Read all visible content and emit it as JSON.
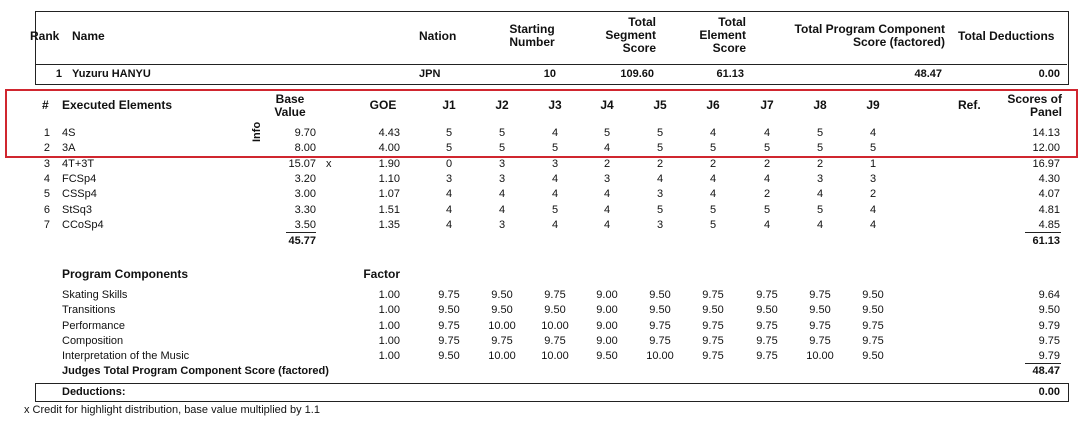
{
  "header": {
    "rank": "Rank",
    "name": "Name",
    "nation": "Nation",
    "starting_number": "Starting Number",
    "total_segment_score": "Total Segment Score",
    "total_element_score": "Total Element Score",
    "total_program_component": "Total Program Component Score (factored)",
    "total_deductions": "Total Deductions"
  },
  "skater": {
    "rank": "1",
    "name": "Yuzuru HANYU",
    "nation": "JPN",
    "starting_number": "10",
    "total_segment_score": "109.60",
    "total_element_score": "61.13",
    "total_program_component": "48.47",
    "total_deductions": "0.00"
  },
  "elements_header": {
    "num": "#",
    "executed_elements": "Executed Elements",
    "info": "Info",
    "base_value": "Base Value",
    "goe": "GOE",
    "judges": [
      "J1",
      "J2",
      "J3",
      "J4",
      "J5",
      "J6",
      "J7",
      "J8",
      "J9"
    ],
    "ref": "Ref.",
    "scores_of_panel": "Scores of Panel"
  },
  "elements": [
    {
      "num": "1",
      "name": "4S",
      "info": "",
      "base": "9.70",
      "x": "",
      "goe": "4.43",
      "j": [
        "5",
        "5",
        "4",
        "5",
        "5",
        "4",
        "4",
        "5",
        "4"
      ],
      "score": "14.13"
    },
    {
      "num": "2",
      "name": "3A",
      "info": "",
      "base": "8.00",
      "x": "",
      "goe": "4.00",
      "j": [
        "5",
        "5",
        "5",
        "4",
        "5",
        "5",
        "5",
        "5",
        "5"
      ],
      "score": "12.00"
    },
    {
      "num": "3",
      "name": "4T+3T",
      "info": "",
      "base": "15.07",
      "x": "x",
      "goe": "1.90",
      "j": [
        "0",
        "3",
        "3",
        "2",
        "2",
        "2",
        "2",
        "2",
        "1"
      ],
      "score": "16.97"
    },
    {
      "num": "4",
      "name": "FCSp4",
      "info": "",
      "base": "3.20",
      "x": "",
      "goe": "1.10",
      "j": [
        "3",
        "3",
        "4",
        "3",
        "4",
        "4",
        "4",
        "3",
        "3"
      ],
      "score": "4.30"
    },
    {
      "num": "5",
      "name": "CSSp4",
      "info": "",
      "base": "3.00",
      "x": "",
      "goe": "1.07",
      "j": [
        "4",
        "4",
        "4",
        "4",
        "3",
        "4",
        "2",
        "4",
        "2"
      ],
      "score": "4.07"
    },
    {
      "num": "6",
      "name": "StSq3",
      "info": "",
      "base": "3.30",
      "x": "",
      "goe": "1.51",
      "j": [
        "4",
        "4",
        "5",
        "4",
        "5",
        "5",
        "5",
        "5",
        "4"
      ],
      "score": "4.81"
    },
    {
      "num": "7",
      "name": "CCoSp4",
      "info": "",
      "base": "3.50",
      "x": "",
      "goe": "1.35",
      "j": [
        "4",
        "3",
        "4",
        "4",
        "3",
        "5",
        "4",
        "4",
        "4"
      ],
      "score": "4.85"
    }
  ],
  "elements_totals": {
    "base": "45.77",
    "score": "61.13"
  },
  "components_header": {
    "title": "Program Components",
    "factor": "Factor"
  },
  "components": [
    {
      "name": "Skating Skills",
      "factor": "1.00",
      "j": [
        "9.75",
        "9.50",
        "9.75",
        "9.00",
        "9.50",
        "9.75",
        "9.75",
        "9.75",
        "9.50"
      ],
      "score": "9.64"
    },
    {
      "name": "Transitions",
      "factor": "1.00",
      "j": [
        "9.50",
        "9.50",
        "9.50",
        "9.00",
        "9.50",
        "9.50",
        "9.50",
        "9.50",
        "9.50"
      ],
      "score": "9.50"
    },
    {
      "name": "Performance",
      "factor": "1.00",
      "j": [
        "9.75",
        "10.00",
        "10.00",
        "9.00",
        "9.75",
        "9.75",
        "9.75",
        "9.75",
        "9.75"
      ],
      "score": "9.79"
    },
    {
      "name": "Composition",
      "factor": "1.00",
      "j": [
        "9.75",
        "9.75",
        "9.75",
        "9.00",
        "9.75",
        "9.75",
        "9.75",
        "9.75",
        "9.75"
      ],
      "score": "9.75"
    },
    {
      "name": "Interpretation of the Music",
      "factor": "1.00",
      "j": [
        "9.50",
        "10.00",
        "10.00",
        "9.50",
        "10.00",
        "9.75",
        "9.75",
        "10.00",
        "9.50"
      ],
      "score": "9.79"
    }
  ],
  "judges_total": {
    "label": "Judges Total Program Component Score (factored)",
    "value": "48.47"
  },
  "deductions": {
    "label": "Deductions:",
    "value": "0.00"
  },
  "footnote": "x  Credit for highlight distribution, base value multiplied by 1.1",
  "colors": {
    "highlight": "#d0262f",
    "text": "#111111"
  }
}
